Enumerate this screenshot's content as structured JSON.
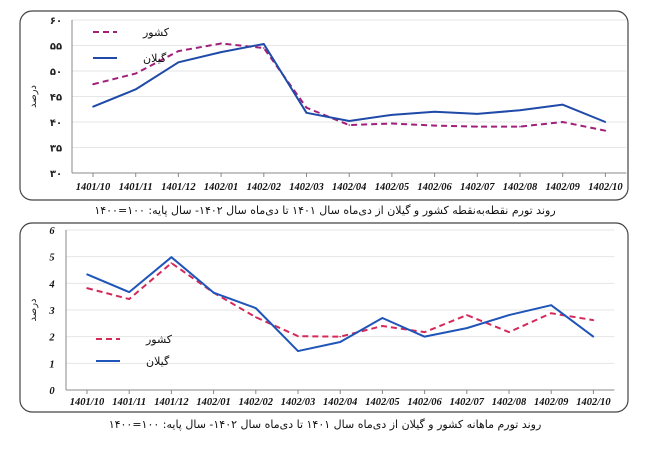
{
  "chart_data": [
    {
      "type": "line",
      "title": "روند تورم نقطه‌به‌نقطه کشور و گیلان  از دی‌ماه سال ۱۴۰۱ تا دی‌ماه سال ۱۴۰۲- سال پایه: ۱۰۰=۱۴۰۰",
      "ylabel": "درصد",
      "xlabel": "",
      "ylim": [
        30,
        60
      ],
      "yticks": [
        30,
        35,
        40,
        45,
        50,
        55,
        60
      ],
      "ytick_labels": [
        "۳۰",
        "۳۵",
        "۴۰",
        "۴۵",
        "۵۰",
        "۵۵",
        "۶۰"
      ],
      "grid": true,
      "legend_position": "top-left",
      "categories": [
        "1401/10",
        "1401/11",
        "1401/12",
        "1402/01",
        "1402/02",
        "1402/03",
        "1402/04",
        "1402/05",
        "1402/06",
        "1402/07",
        "1402/08",
        "1402/09",
        "1402/10"
      ],
      "series": [
        {
          "name": "کشور",
          "style": "dashed",
          "color": "#a0207a",
          "values": [
            47.4,
            49.5,
            53.9,
            55.4,
            54.5,
            42.8,
            39.4,
            39.7,
            39.3,
            39.1,
            39.1,
            40.0,
            38.3
          ]
        },
        {
          "name": "گیلان",
          "style": "solid",
          "color": "#1f4aa8",
          "values": [
            43.0,
            46.4,
            51.7,
            53.7,
            55.3,
            41.8,
            40.2,
            41.4,
            42.0,
            41.6,
            42.3,
            43.4,
            40.0
          ]
        }
      ]
    },
    {
      "type": "line",
      "title": "روند تورم ماهانه کشور و گیلان  از دی‌ماه سال ۱۴۰۱ تا دی‌ماه سال ۱۴۰۲- سال پایه: ۱۰۰=۱۴۰۰",
      "ylabel": "درصد",
      "xlabel": "",
      "ylim": [
        0,
        6
      ],
      "yticks": [
        0,
        1,
        2,
        3,
        4,
        5,
        6
      ],
      "ytick_labels": [
        "0",
        "1",
        "2",
        "3",
        "4",
        "5",
        "6"
      ],
      "grid": true,
      "legend_position": "bottom-left",
      "categories": [
        "1401/10",
        "1401/11",
        "1401/12",
        "1402/01",
        "1402/02",
        "1402/03",
        "1402/04",
        "1402/05",
        "1402/06",
        "1402/07",
        "1402/08",
        "1402/09",
        "1402/10"
      ],
      "series": [
        {
          "name": "کشور",
          "style": "dashed",
          "color": "#d42a5a",
          "values": [
            3.82,
            3.41,
            4.76,
            3.65,
            2.73,
            2.02,
            2.0,
            2.4,
            2.17,
            2.81,
            2.17,
            2.88,
            2.62
          ]
        },
        {
          "name": "گیلان",
          "style": "solid",
          "color": "#1f55b8",
          "values": [
            4.34,
            3.67,
            4.98,
            3.65,
            3.07,
            1.46,
            1.8,
            2.7,
            2.0,
            2.32,
            2.81,
            3.18,
            2.0
          ]
        }
      ]
    }
  ]
}
